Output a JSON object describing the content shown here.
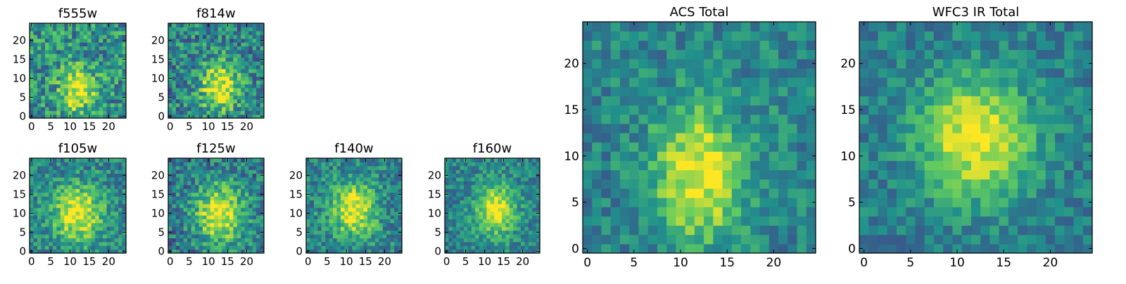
{
  "figure": {
    "colormap": [
      "#440154",
      "#3b528b",
      "#21918c",
      "#5ec962",
      "#fde725"
    ]
  },
  "chart_data": [
    {
      "type": "heatmap",
      "title": "f555w",
      "grid_size": 25,
      "xlim": [
        0,
        24
      ],
      "ylim": [
        0,
        24
      ],
      "x_ticks": [
        0,
        5,
        10,
        15,
        20
      ],
      "y_ticks": [
        0,
        5,
        10,
        15,
        20
      ],
      "peak": {
        "x": 12,
        "y": 7
      },
      "grid": false
    },
    {
      "type": "heatmap",
      "title": "f814w",
      "grid_size": 25,
      "xlim": [
        0,
        24
      ],
      "ylim": [
        0,
        24
      ],
      "x_ticks": [
        0,
        5,
        10,
        15,
        20
      ],
      "y_ticks": [
        0,
        5,
        10,
        15,
        20
      ],
      "peak": {
        "x": 13,
        "y": 8
      },
      "grid": false
    },
    {
      "type": "heatmap",
      "title": "f105w",
      "grid_size": 25,
      "xlim": [
        0,
        24
      ],
      "ylim": [
        0,
        24
      ],
      "x_ticks": [
        0,
        5,
        10,
        15,
        20
      ],
      "y_ticks": [
        0,
        5,
        10,
        15,
        20
      ],
      "peak": {
        "x": 12,
        "y": 10
      },
      "grid": false
    },
    {
      "type": "heatmap",
      "title": "f125w",
      "grid_size": 25,
      "xlim": [
        0,
        24
      ],
      "ylim": [
        0,
        24
      ],
      "x_ticks": [
        0,
        5,
        10,
        15,
        20
      ],
      "y_ticks": [
        0,
        5,
        10,
        15,
        20
      ],
      "peak": {
        "x": 13,
        "y": 10
      },
      "grid": false
    },
    {
      "type": "heatmap",
      "title": "f140w",
      "grid_size": 25,
      "xlim": [
        0,
        24
      ],
      "ylim": [
        0,
        24
      ],
      "x_ticks": [
        0,
        5,
        10,
        15,
        20
      ],
      "y_ticks": [
        0,
        5,
        10,
        15,
        20
      ],
      "peak": {
        "x": 12,
        "y": 11
      },
      "grid": false
    },
    {
      "type": "heatmap",
      "title": "f160w",
      "grid_size": 25,
      "xlim": [
        0,
        24
      ],
      "ylim": [
        0,
        24
      ],
      "x_ticks": [
        0,
        5,
        10,
        15,
        20
      ],
      "y_ticks": [
        0,
        5,
        10,
        15,
        20
      ],
      "peak": {
        "x": 13,
        "y": 11
      },
      "grid": false
    },
    {
      "type": "heatmap",
      "title": "ACS Total",
      "grid_size": 25,
      "xlim": [
        0,
        24
      ],
      "ylim": [
        0,
        24
      ],
      "x_ticks": [
        0,
        5,
        10,
        15,
        20
      ],
      "y_ticks": [
        0,
        5,
        10,
        15,
        20
      ],
      "peak": {
        "x": 12,
        "y": 8
      },
      "grid": false
    },
    {
      "type": "heatmap",
      "title": "WFC3 IR Total",
      "grid_size": 25,
      "xlim": [
        0,
        24
      ],
      "ylim": [
        0,
        24
      ],
      "x_ticks": [
        0,
        5,
        10,
        15,
        20
      ],
      "y_ticks": [
        0,
        5,
        10,
        15,
        20
      ],
      "peak": {
        "x": 12,
        "y": 12
      },
      "grid": false
    }
  ]
}
